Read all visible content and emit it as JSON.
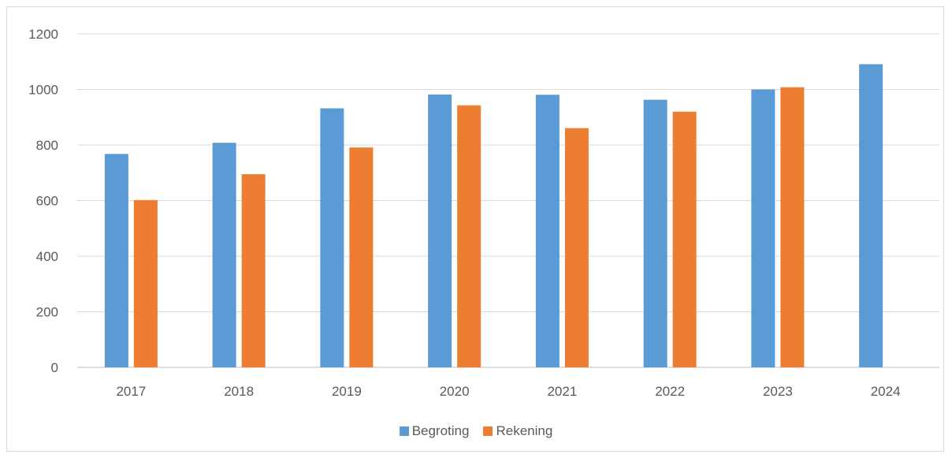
{
  "chart_data": {
    "type": "bar",
    "title": "",
    "xlabel": "",
    "ylabel": "",
    "categories": [
      "2017",
      "2018",
      "2019",
      "2020",
      "2021",
      "2022",
      "2023",
      "2024"
    ],
    "series": [
      {
        "name": "Begroting",
        "color": "#5b9bd5",
        "values": [
          768,
          808,
          932,
          982,
          981,
          963,
          1000,
          1091
        ]
      },
      {
        "name": "Rekening",
        "color": "#ed7d31",
        "values": [
          602,
          695,
          791,
          943,
          861,
          920,
          1008,
          null
        ]
      }
    ],
    "ylim": [
      0,
      1200
    ],
    "yticks": [
      "0",
      "200",
      "400",
      "600",
      "800",
      "1000",
      "1200"
    ],
    "grid": true,
    "legend_position": "bottom"
  }
}
